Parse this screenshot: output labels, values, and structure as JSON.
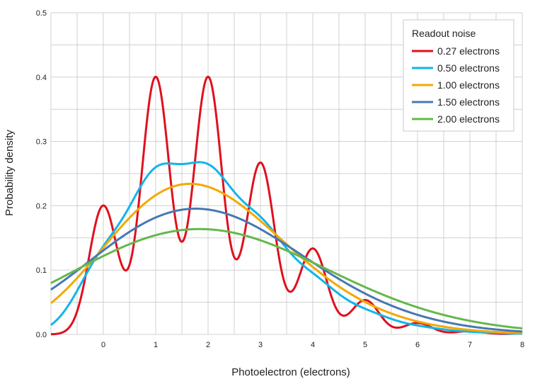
{
  "chart_data": {
    "type": "line",
    "xlabel": "Photoelectron (electrons)",
    "ylabel": "Probability density",
    "xlim": [
      -1,
      8
    ],
    "ylim": [
      0,
      0.5
    ],
    "x_ticks": [
      "0",
      "1",
      "2",
      "3",
      "4",
      "5",
      "6",
      "7",
      "8"
    ],
    "y_ticks": [
      "0.0",
      "0.1",
      "0.2",
      "0.3",
      "0.4",
      "0.5"
    ],
    "grid": true,
    "legend": {
      "title": "Readout noise",
      "position": "top-right"
    },
    "poisson_mean": 2,
    "series": [
      {
        "name": "0.27 electrons",
        "sigma": 0.27,
        "color": "#e0101e"
      },
      {
        "name": "0.50 electrons",
        "sigma": 0.5,
        "color": "#12b5e8"
      },
      {
        "name": "1.00 electrons",
        "sigma": 1.0,
        "color": "#f2a900"
      },
      {
        "name": "1.50 electrons",
        "sigma": 1.5,
        "color": "#4878b4"
      },
      {
        "name": "2.00 electrons",
        "sigma": 2.0,
        "color": "#64b84c"
      }
    ]
  }
}
